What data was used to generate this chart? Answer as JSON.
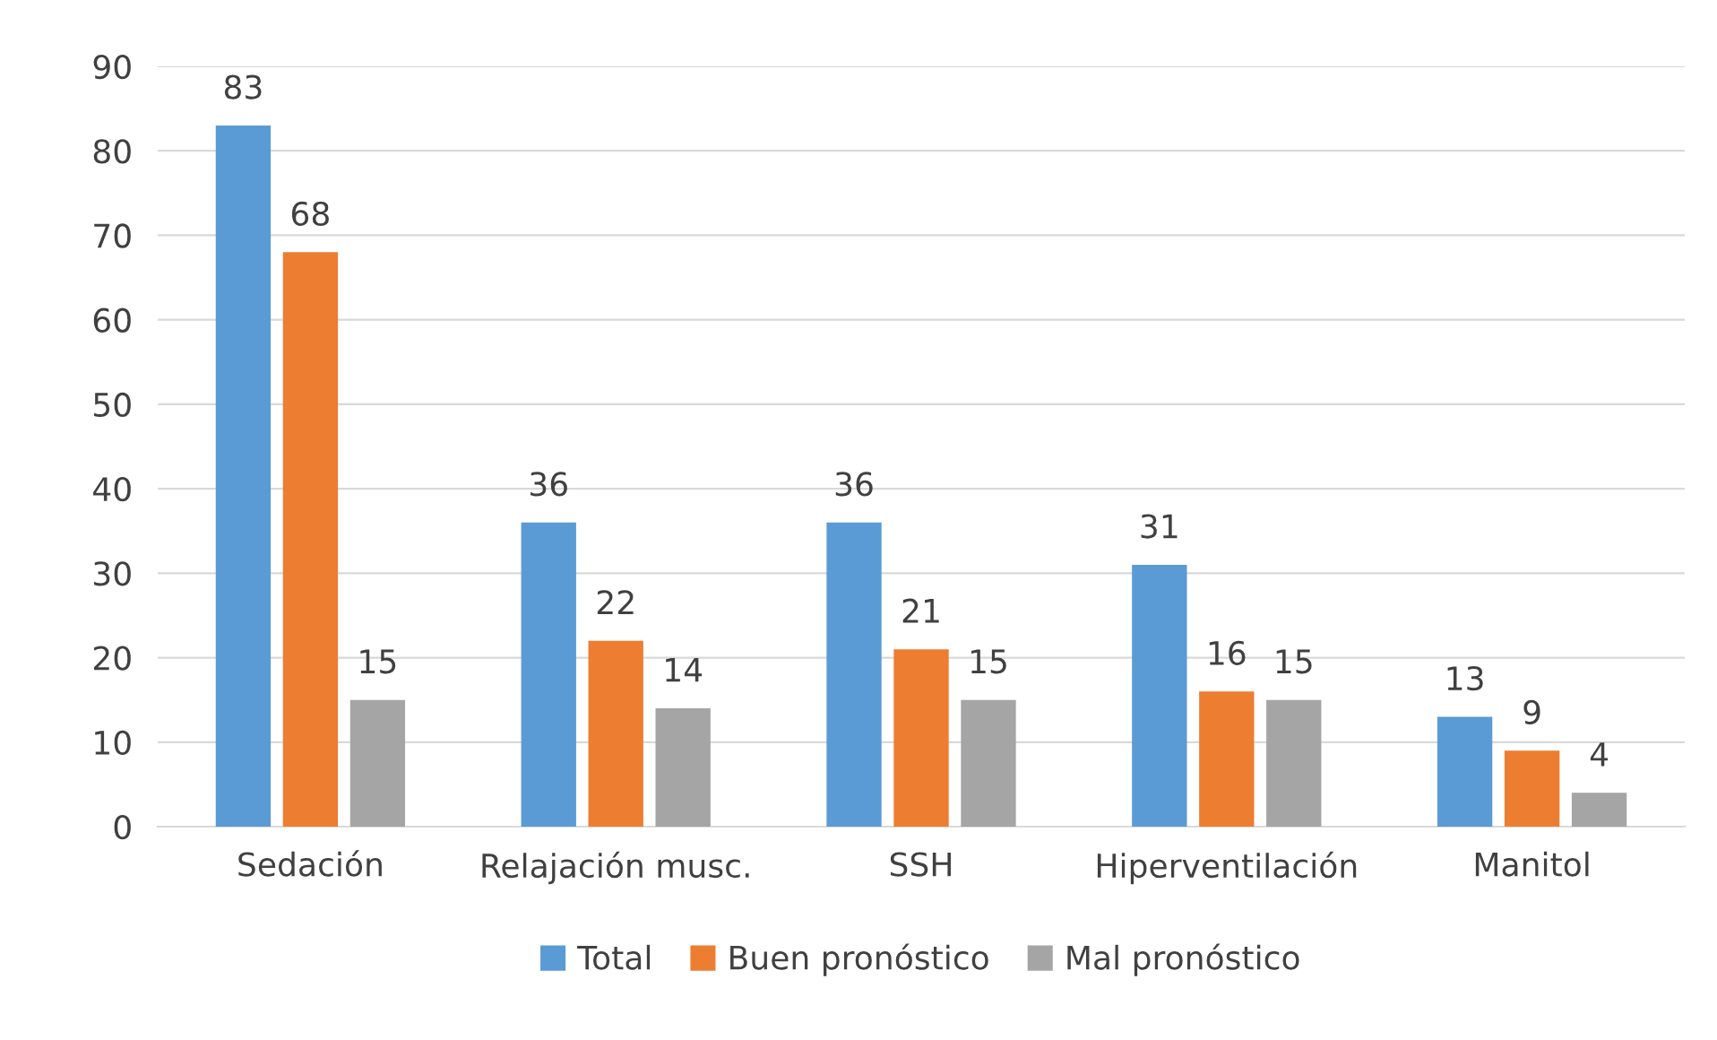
{
  "chart_data": {
    "type": "bar",
    "categories": [
      "Sedación",
      "Relajación musc.",
      "SSH",
      "Hiperventilación",
      "Manitol"
    ],
    "series": [
      {
        "name": "Total",
        "color": "#5b9bd5",
        "values": [
          83,
          36,
          36,
          31,
          13
        ]
      },
      {
        "name": "Buen pronóstico",
        "color": "#ed7d31",
        "values": [
          68,
          22,
          21,
          16,
          9
        ]
      },
      {
        "name": "Mal pronóstico",
        "color": "#a5a5a5",
        "values": [
          15,
          14,
          15,
          15,
          4
        ]
      }
    ],
    "ylim": [
      0,
      90
    ],
    "yticks": [
      0,
      10,
      20,
      30,
      40,
      50,
      60,
      70,
      80,
      90
    ],
    "grid": "y",
    "legend": "bottom",
    "data_labels": true
  }
}
